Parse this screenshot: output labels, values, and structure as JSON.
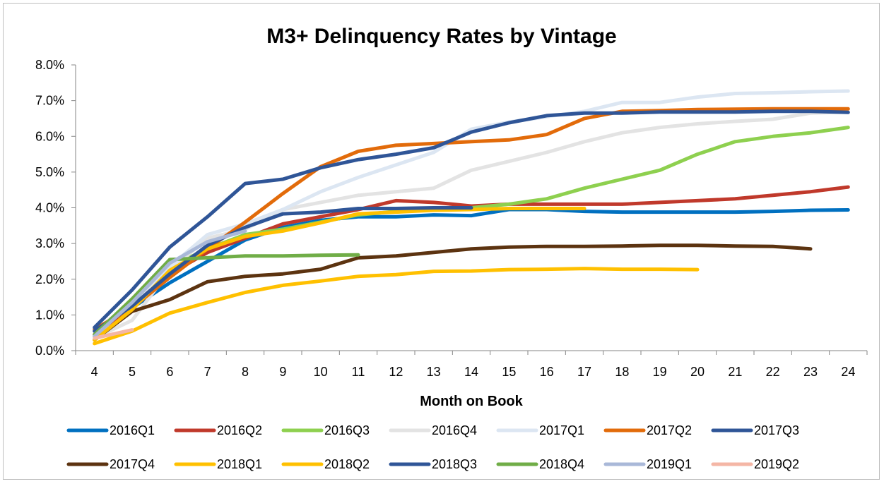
{
  "chart_data": {
    "type": "line",
    "title": "M3+ Delinquency Rates by Vintage",
    "xlabel": "Month on Book",
    "ylabel": "",
    "x": [
      4,
      5,
      6,
      7,
      8,
      9,
      10,
      11,
      12,
      13,
      14,
      15,
      16,
      17,
      18,
      19,
      20,
      21,
      22,
      23,
      24
    ],
    "ylim": [
      0,
      0.08
    ],
    "yticks": [
      "0.0%",
      "1.0%",
      "2.0%",
      "3.0%",
      "4.0%",
      "5.0%",
      "6.0%",
      "7.0%",
      "8.0%"
    ],
    "grid": false,
    "legend_position": "bottom",
    "series": [
      {
        "name": "2016Q1",
        "color": "#0070C0",
        "values": [
          0.0055,
          0.012,
          0.019,
          0.025,
          0.031,
          0.0345,
          0.0365,
          0.0375,
          0.0375,
          0.038,
          0.0378,
          0.0395,
          0.0395,
          0.039,
          0.0388,
          0.0388,
          0.0388,
          0.0388,
          0.039,
          0.0393,
          0.0394
        ]
      },
      {
        "name": "2016Q2",
        "color": "#C0392B",
        "values": [
          0.0045,
          0.0125,
          0.0215,
          0.0275,
          0.0315,
          0.0355,
          0.0375,
          0.0395,
          0.042,
          0.0415,
          0.0405,
          0.041,
          0.041,
          0.041,
          0.041,
          0.0415,
          0.042,
          0.0425,
          0.0435,
          0.0445,
          0.0458
        ]
      },
      {
        "name": "2016Q3",
        "color": "#8ED04F",
        "values": [
          0.004,
          0.014,
          0.0235,
          0.0285,
          0.0325,
          0.034,
          0.036,
          0.038,
          0.039,
          0.0395,
          0.04,
          0.041,
          0.0425,
          0.0455,
          0.048,
          0.0505,
          0.055,
          0.0585,
          0.06,
          0.061,
          0.0625
        ]
      },
      {
        "name": "2016Q4",
        "color": "#E3E3E3",
        "values": [
          0.0035,
          0.0085,
          0.0225,
          0.0315,
          0.034,
          0.0395,
          0.0415,
          0.0435,
          0.0445,
          0.0455,
          0.0505,
          0.053,
          0.0555,
          0.0585,
          0.061,
          0.0625,
          0.0635,
          0.0642,
          0.0648,
          0.0665,
          0.0668
        ]
      },
      {
        "name": "2017Q1",
        "color": "#DCE6F2",
        "values": [
          0.0055,
          0.0135,
          0.0235,
          0.0325,
          0.0355,
          0.0395,
          0.0445,
          0.0485,
          0.052,
          0.0555,
          0.062,
          0.064,
          0.0655,
          0.067,
          0.0695,
          0.0695,
          0.071,
          0.072,
          0.0722,
          0.0725,
          0.0727
        ]
      },
      {
        "name": "2017Q2",
        "color": "#E26B0A",
        "values": [
          0.006,
          0.012,
          0.0205,
          0.0285,
          0.036,
          0.044,
          0.0515,
          0.0558,
          0.0575,
          0.058,
          0.0585,
          0.059,
          0.0605,
          0.065,
          0.067,
          0.0672,
          0.0675,
          0.0676,
          0.0677,
          0.0677,
          0.0677
        ]
      },
      {
        "name": "2017Q3",
        "color": "#2F5597",
        "values": [
          0.0065,
          0.017,
          0.029,
          0.0375,
          0.0468,
          0.048,
          0.0512,
          0.0535,
          0.055,
          0.0568,
          0.0612,
          0.0638,
          0.0658,
          0.0665,
          0.0665,
          0.0668,
          0.0668,
          0.0668,
          0.067,
          0.067,
          0.0667
        ]
      },
      {
        "name": "2017Q4",
        "color": "#5C3310",
        "values": [
          0.003,
          0.011,
          0.0143,
          0.0193,
          0.0208,
          0.0215,
          0.0228,
          0.026,
          0.0265,
          0.0275,
          0.0285,
          0.029,
          0.0292,
          0.0292,
          0.0293,
          0.0295,
          0.0295,
          0.0293,
          0.0292,
          0.0285,
          null
        ]
      },
      {
        "name": "2018Q1",
        "color": "#FFC000",
        "values": [
          0.002,
          0.0055,
          0.0105,
          0.0135,
          0.0163,
          0.0183,
          0.0195,
          0.0208,
          0.0213,
          0.0222,
          0.0223,
          0.0227,
          0.0228,
          0.023,
          0.0228,
          0.0228,
          0.0227,
          null,
          null,
          null,
          null
        ]
      },
      {
        "name": "2018Q2",
        "color": "#FFC000",
        "values": [
          0.003,
          0.0115,
          0.0225,
          0.0285,
          0.032,
          0.0335,
          0.0358,
          0.0383,
          0.0388,
          0.0393,
          0.0395,
          0.0398,
          0.0398,
          0.0398,
          null,
          null,
          null,
          null,
          null,
          null,
          null
        ]
      },
      {
        "name": "2018Q3",
        "color": "#2F5597",
        "values": [
          0.0055,
          0.0125,
          0.0215,
          0.0295,
          0.0345,
          0.0383,
          0.0388,
          0.0398,
          0.0398,
          0.04,
          0.04,
          null,
          null,
          null,
          null,
          null,
          null,
          null,
          null,
          null,
          null
        ]
      },
      {
        "name": "2018Q4",
        "color": "#70AD47",
        "values": [
          0.0045,
          0.0145,
          0.0255,
          0.026,
          0.0265,
          0.0265,
          0.0267,
          0.0268,
          null,
          null,
          null,
          null,
          null,
          null,
          null,
          null,
          null,
          null,
          null,
          null,
          null
        ]
      },
      {
        "name": "2019Q1",
        "color": "#A9B8D8",
        "values": [
          0.004,
          0.0135,
          0.0245,
          0.0305,
          0.0335,
          null,
          null,
          null,
          null,
          null,
          null,
          null,
          null,
          null,
          null,
          null,
          null,
          null,
          null,
          null,
          null
        ]
      },
      {
        "name": "2019Q2",
        "color": "#F4B6A5",
        "values": [
          0.0035,
          0.0058,
          null,
          null,
          null,
          null,
          null,
          null,
          null,
          null,
          null,
          null,
          null,
          null,
          null,
          null,
          null,
          null,
          null,
          null,
          null
        ]
      }
    ]
  }
}
